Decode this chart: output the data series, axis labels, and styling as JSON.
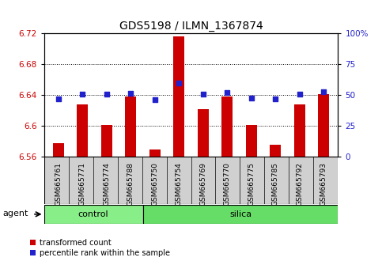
{
  "title": "GDS5198 / ILMN_1367874",
  "samples": [
    "GSM665761",
    "GSM665771",
    "GSM665774",
    "GSM665788",
    "GSM665750",
    "GSM665754",
    "GSM665769",
    "GSM665770",
    "GSM665775",
    "GSM665785",
    "GSM665792",
    "GSM665793"
  ],
  "n_control": 4,
  "red_values": [
    6.578,
    6.628,
    6.601,
    6.638,
    6.57,
    6.716,
    6.622,
    6.638,
    6.601,
    6.576,
    6.628,
    6.641
  ],
  "blue_values": [
    6.635,
    6.641,
    6.641,
    6.642,
    6.634,
    6.656,
    6.641,
    6.643,
    6.636,
    6.635,
    6.641,
    6.644
  ],
  "ylim_left": [
    6.56,
    6.72
  ],
  "ylim_right": [
    0,
    100
  ],
  "yticks_left": [
    6.56,
    6.6,
    6.64,
    6.68,
    6.72
  ],
  "yticks_right": [
    0,
    25,
    50,
    75,
    100
  ],
  "bar_color": "#cc0000",
  "dot_color": "#2222cc",
  "control_color": "#88ee88",
  "silica_color": "#66dd66",
  "bg_color": "#d0d0d0",
  "agent_label": "agent",
  "group_labels": [
    "control",
    "silica"
  ],
  "legend_bar": "transformed count",
  "legend_dot": "percentile rank within the sample",
  "title_fontsize": 10,
  "tick_fontsize": 7.5,
  "label_fontsize": 6.5,
  "group_fontsize": 8,
  "legend_fontsize": 7
}
